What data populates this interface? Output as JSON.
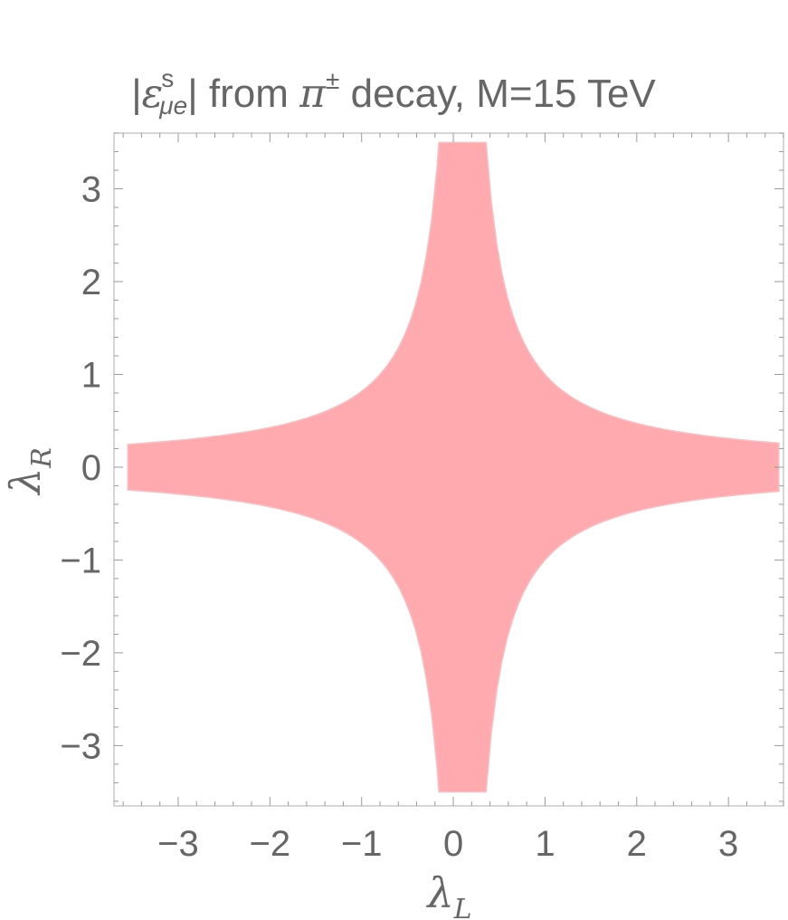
{
  "chart_data": {
    "type": "area",
    "title_parts": {
      "bar_left": "|",
      "epsilon": "ε",
      "superscript": "s",
      "subscript": "μe",
      "bar_right": "|",
      "from_text": " from ",
      "pi": "π",
      "pi_superscript": "±",
      "rest": " decay, M=15 TeV"
    },
    "xlabel": {
      "symbol": "λ",
      "subscript": "L"
    },
    "ylabel": {
      "symbol": "λ",
      "subscript": "R"
    },
    "xlim": [
      -3.7,
      3.6
    ],
    "ylim": [
      -3.65,
      3.6
    ],
    "xticks": [
      {
        "value": -3,
        "label": "−3"
      },
      {
        "value": -2,
        "label": "−2"
      },
      {
        "value": -1,
        "label": "−1"
      },
      {
        "value": 0,
        "label": "0"
      },
      {
        "value": 1,
        "label": "1"
      },
      {
        "value": 2,
        "label": "2"
      },
      {
        "value": 3,
        "label": "3"
      }
    ],
    "yticks": [
      {
        "value": -3,
        "label": "−3"
      },
      {
        "value": -2,
        "label": "−2"
      },
      {
        "value": -1,
        "label": "−1"
      },
      {
        "value": 0,
        "label": "0"
      },
      {
        "value": 1,
        "label": "1"
      },
      {
        "value": 2,
        "label": "2"
      },
      {
        "value": 3,
        "label": "3"
      }
    ],
    "region": {
      "description": "allowed region |λL·λR| < k, bounded by hyperbolae",
      "hyperbola_constant": 0.9,
      "shift_x": 0.1,
      "clip_x": [
        -3.55,
        3.55
      ],
      "clip_y": [
        -3.5,
        3.5
      ],
      "color": "#ffaaaf",
      "edge_color": "#f3c4c7"
    },
    "grid": false,
    "frame_color": "#bbbbbb",
    "text_color": "#666666"
  }
}
